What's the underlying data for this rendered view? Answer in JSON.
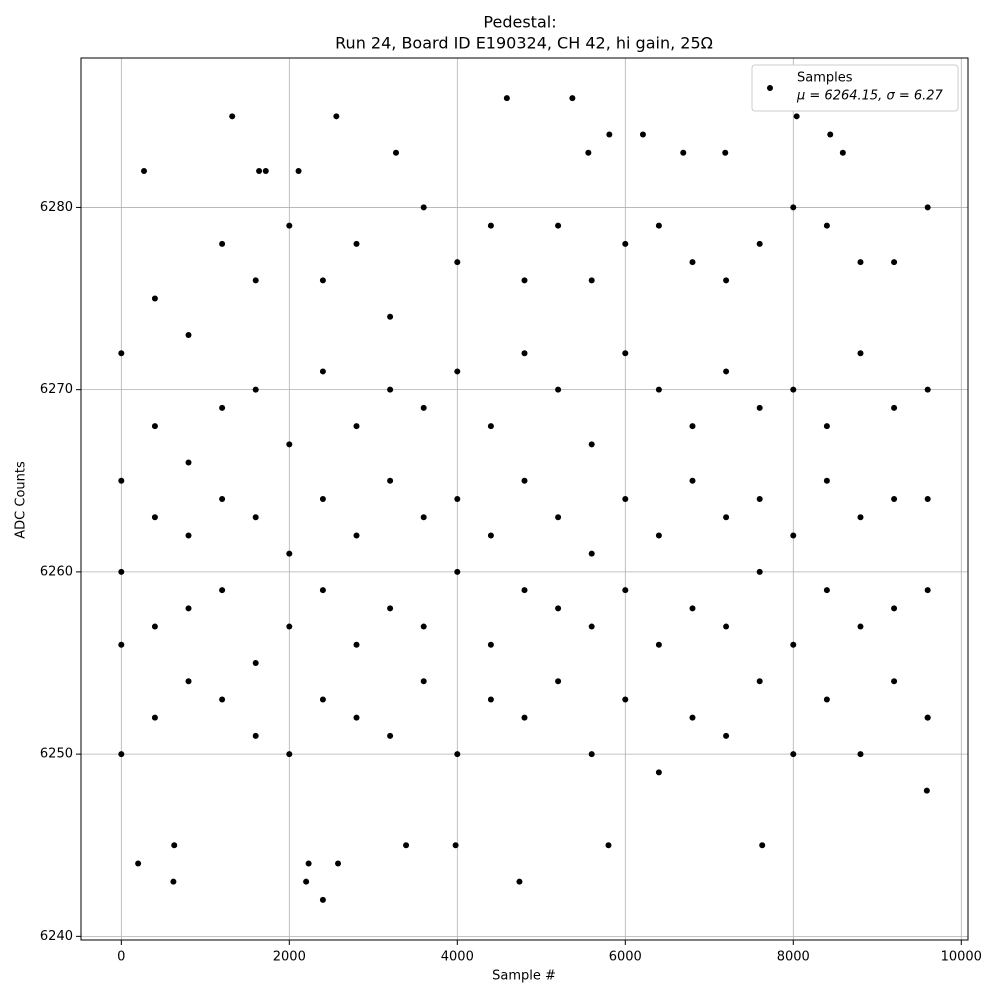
{
  "chart_data": {
    "type": "scatter",
    "title": "Pedestal:",
    "subtitle": "Run 24, Board ID E190324, CH 42, hi gain, 25Ω",
    "xlabel": "Sample #",
    "ylabel": "ADC Counts",
    "xlim": [
      -480,
      10080
    ],
    "ylim": [
      6239.8,
      6288.2
    ],
    "xticks": [
      0,
      2000,
      4000,
      6000,
      8000,
      10000
    ],
    "yticks": [
      6240,
      6250,
      6260,
      6270,
      6280
    ],
    "grid": true,
    "legend": "upper right",
    "series": [
      {
        "name": "Samples",
        "label": "μ = 6264.15, σ = 6.27",
        "color": "#000000",
        "x": [
          200,
          270,
          620,
          630,
          1320,
          1640,
          1720,
          2110,
          2200,
          2230,
          2400,
          2560,
          2580,
          3270,
          3390,
          3980,
          4590,
          4740,
          5370,
          5560,
          5800,
          5810,
          6210,
          6690,
          7190,
          7630,
          8040,
          8440,
          8590,
          9590,
          9600,
          0,
          0,
          0,
          0,
          0,
          400,
          400,
          400,
          400,
          400,
          800,
          800,
          800,
          800,
          800,
          1200,
          1200,
          1200,
          1200,
          1200,
          1600,
          1600,
          1600,
          1600,
          1600,
          2000,
          2000,
          2000,
          2000,
          2000,
          2400,
          2400,
          2400,
          2400,
          2400,
          2800,
          2800,
          2800,
          2800,
          2800,
          3200,
          3200,
          3200,
          3200,
          3200,
          3600,
          3600,
          3600,
          3600,
          3600,
          4000,
          4000,
          4000,
          4000,
          4000,
          4400,
          4400,
          4400,
          4400,
          4400,
          4800,
          4800,
          4800,
          4800,
          4800,
          5200,
          5200,
          5200,
          5200,
          5200,
          5600,
          5600,
          5600,
          5600,
          5600,
          6000,
          6000,
          6000,
          6000,
          6000,
          6400,
          6400,
          6400,
          6400,
          6400,
          6800,
          6800,
          6800,
          6800,
          6800,
          7200,
          7200,
          7200,
          7200,
          7200,
          7600,
          7600,
          7600,
          7600,
          7600,
          8000,
          8000,
          8000,
          8000,
          8000,
          8400,
          8400,
          8400,
          8400,
          8400,
          8800,
          8800,
          8800,
          8800,
          8800,
          9200,
          9200,
          9200,
          9200,
          9200,
          9600,
          9600,
          9600,
          9600,
          9600
        ],
        "values": [
          6244,
          6282,
          6243,
          6245,
          6285,
          6282,
          6282,
          6282,
          6243,
          6244,
          6242,
          6285,
          6244,
          6283,
          6245,
          6245,
          6286,
          6243,
          6286,
          6283,
          6245,
          6284,
          6284,
          6283,
          6283,
          6245,
          6285,
          6284,
          6283,
          6248,
          6252,
          6272,
          6265,
          6260,
          6256,
          6250,
          6275,
          6268,
          6263,
          6257,
          6252,
          6273,
          6266,
          6262,
          6258,
          6254,
          6278,
          6269,
          6264,
          6259,
          6253,
          6276,
          6270,
          6263,
          6255,
          6251,
          6279,
          6267,
          6261,
          6257,
          6250,
          6276,
          6271,
          6264,
          6259,
          6253,
          6278,
          6268,
          6262,
          6256,
          6252,
          6274,
          6270,
          6265,
          6258,
          6251,
          6280,
          6269,
          6263,
          6257,
          6254,
          6277,
          6271,
          6264,
          6260,
          6250,
          6279,
          6268,
          6262,
          6256,
          6253,
          6276,
          6272,
          6265,
          6259,
          6252,
          6279,
          6270,
          6263,
          6258,
          6254,
          6276,
          6267,
          6261,
          6257,
          6250,
          6278,
          6272,
          6264,
          6259,
          6253,
          6279,
          6270,
          6262,
          6256,
          6249,
          6277,
          6268,
          6265,
          6258,
          6252,
          6276,
          6271,
          6263,
          6257,
          6251,
          6278,
          6269,
          6264,
          6260,
          6254,
          6280,
          6270,
          6262,
          6256,
          6250,
          6279,
          6268,
          6265,
          6259,
          6253,
          6277,
          6272,
          6263,
          6257,
          6250,
          6277,
          6269,
          6264,
          6258,
          6254,
          6280,
          6270,
          6264,
          6259,
          6252
        ]
      }
    ]
  }
}
